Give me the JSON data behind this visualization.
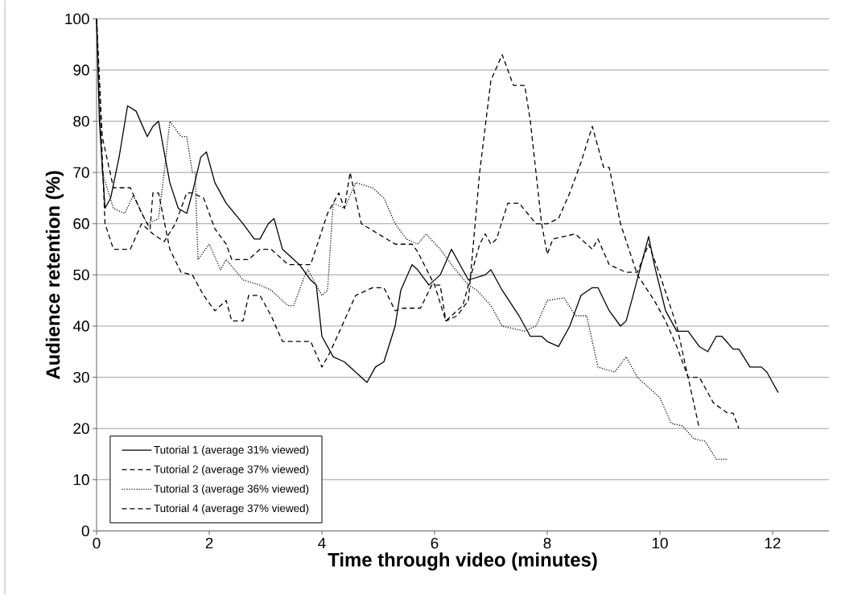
{
  "chart_data": {
    "type": "line",
    "xlabel": "Time through video (minutes)",
    "ylabel": "Audience retention (%)",
    "xlim": [
      0,
      13
    ],
    "xticks": [
      0,
      2,
      4,
      6,
      8,
      10,
      12
    ],
    "ylim": [
      0,
      100
    ],
    "yticks": [
      0,
      10,
      20,
      30,
      40,
      50,
      60,
      70,
      80,
      90,
      100
    ],
    "grid": "y",
    "legend": "bottom left",
    "marker": "none",
    "series": [
      {
        "name": "Tutorial 1 (average 31% viewed)",
        "color": "#000000",
        "line_style": "solid",
        "x": [
          0,
          0.05,
          0.15,
          0.25,
          0.4,
          0.55,
          0.7,
          0.9,
          1.0,
          1.1,
          1.3,
          1.45,
          1.6,
          1.7,
          1.85,
          1.95,
          2.1,
          2.3,
          2.6,
          2.8,
          2.9,
          3.05,
          3.15,
          3.3,
          3.6,
          3.8,
          3.9,
          4.0,
          4.2,
          4.4,
          4.6,
          4.8,
          4.95,
          5.1,
          5.3,
          5.4,
          5.6,
          5.7,
          5.9,
          6.1,
          6.3,
          6.4,
          6.6,
          6.9,
          7.0,
          7.2,
          7.5,
          7.7,
          7.9,
          8.0,
          8.2,
          8.4,
          8.6,
          8.8,
          8.9,
          9.1,
          9.3,
          9.4,
          9.5,
          9.8,
          9.9,
          10.1,
          10.3,
          10.5,
          10.7,
          10.85,
          11.0,
          11.1,
          11.3,
          11.4,
          11.6,
          11.8,
          11.9,
          12.0,
          12.1
        ],
        "values": [
          100,
          80,
          63,
          65,
          73,
          83,
          82,
          77,
          79,
          80,
          68,
          63,
          62,
          66,
          73,
          74,
          68,
          64,
          60,
          57,
          57,
          60,
          61,
          55,
          52,
          49,
          48,
          38,
          34,
          33,
          31,
          29,
          32,
          33,
          40,
          47,
          52,
          51,
          48,
          50,
          55,
          53,
          49,
          50,
          51,
          47,
          42,
          38,
          38,
          37,
          36,
          40,
          46,
          47.5,
          47.5,
          43,
          40,
          41,
          45,
          57.5,
          52,
          43,
          39,
          39,
          36,
          35,
          38,
          38,
          35.5,
          35.5,
          32,
          32,
          31,
          29,
          27
        ]
      },
      {
        "name": "Tutorial 2 (average 37% viewed)",
        "color": "#000000",
        "line_style": "dashed",
        "x": [
          0,
          0.1,
          0.3,
          0.6,
          0.8,
          0.95,
          1.0,
          1.1,
          1.3,
          1.5,
          1.7,
          1.9,
          2.1,
          2.3,
          2.4,
          2.6,
          2.7,
          2.9,
          3.1,
          3.3,
          3.8,
          4.0,
          4.15,
          4.6,
          4.9,
          5.1,
          5.3,
          5.45,
          5.75,
          5.95,
          6.1,
          6.2,
          6.4,
          6.6,
          6.8,
          7.0,
          7.2,
          7.4,
          7.6,
          7.7,
          7.9,
          8.0,
          8.1,
          8.5,
          8.8,
          8.9,
          9.1,
          9.4,
          9.6,
          9.8,
          10.0,
          10.3,
          10.5,
          10.7
        ],
        "values": [
          100,
          77,
          67,
          67,
          62,
          59,
          66,
          66,
          55,
          50.5,
          50,
          46,
          43,
          45,
          41,
          41,
          46,
          46,
          42,
          37,
          37,
          32,
          35,
          46,
          47.5,
          47.5,
          43,
          43.5,
          43.5,
          48,
          48,
          41,
          42,
          45,
          70,
          88,
          93,
          87,
          87,
          80,
          60,
          54,
          57,
          58,
          55,
          57,
          52,
          50.5,
          50.5,
          56,
          50,
          40,
          30,
          20
        ]
      },
      {
        "name": "Tutorial 3 (average 36% viewed)",
        "color": "#000000",
        "line_style": "dotted",
        "x": [
          0,
          0.1,
          0.3,
          0.5,
          0.65,
          0.9,
          1.1,
          1.2,
          1.3,
          1.5,
          1.6,
          1.7,
          1.75,
          1.8,
          2.0,
          2.2,
          2.3,
          2.6,
          2.9,
          3.1,
          3.4,
          3.5,
          3.7,
          3.75,
          4.0,
          4.1,
          4.2,
          4.4,
          4.6,
          4.9,
          5.1,
          5.3,
          5.5,
          5.7,
          5.85,
          6.1,
          6.3,
          6.6,
          6.75,
          7.0,
          7.2,
          7.6,
          7.8,
          8.0,
          8.3,
          8.5,
          8.7,
          8.9,
          9.2,
          9.4,
          9.6,
          9.8,
          10.0,
          10.2,
          10.4,
          10.6,
          10.8,
          11.0,
          11.2
        ],
        "values": [
          100,
          70,
          63,
          62,
          65.5,
          60,
          61,
          70,
          80,
          77,
          77,
          70,
          70,
          53,
          56,
          51,
          53,
          49,
          48,
          47,
          44,
          44,
          50,
          51,
          46,
          47,
          64,
          63,
          68,
          67,
          65,
          60,
          57,
          56,
          58,
          55,
          52,
          48,
          47,
          44,
          40,
          39,
          40,
          45,
          45.5,
          42,
          42,
          32,
          31,
          34,
          30,
          28,
          26,
          21,
          20.5,
          18,
          17.5,
          14,
          14
        ]
      },
      {
        "name": "Tutorial 4  (average 37% viewed)",
        "color": "#000000",
        "line_style": "dashed",
        "x": [
          0,
          0.15,
          0.3,
          0.6,
          0.8,
          1.0,
          1.2,
          1.4,
          1.6,
          1.7,
          1.9,
          2.1,
          2.3,
          2.4,
          2.7,
          2.9,
          3.1,
          3.4,
          3.8,
          4.1,
          4.3,
          4.4,
          4.5,
          4.7,
          5.0,
          5.3,
          5.6,
          5.7,
          6.0,
          6.2,
          6.5,
          6.8,
          6.9,
          7.0,
          7.1,
          7.3,
          7.5,
          7.8,
          8.0,
          8.2,
          8.4,
          8.6,
          8.8,
          9.0,
          9.1,
          9.3,
          9.6,
          9.9,
          10.1,
          10.3,
          10.5,
          10.7,
          10.95,
          11.2,
          11.3,
          11.4
        ],
        "values": [
          100,
          60,
          55,
          55,
          60,
          58,
          56.5,
          60,
          66,
          66,
          65,
          59,
          56,
          53,
          53,
          55,
          55,
          52,
          52,
          62,
          66,
          63,
          70,
          60,
          58,
          56,
          56,
          54.5,
          48,
          41,
          44,
          56,
          58,
          56,
          57,
          64,
          64,
          60,
          60,
          61,
          66,
          72,
          79,
          71,
          71,
          60,
          50,
          45,
          41,
          36,
          30,
          30,
          25,
          23,
          23,
          20
        ]
      }
    ]
  }
}
